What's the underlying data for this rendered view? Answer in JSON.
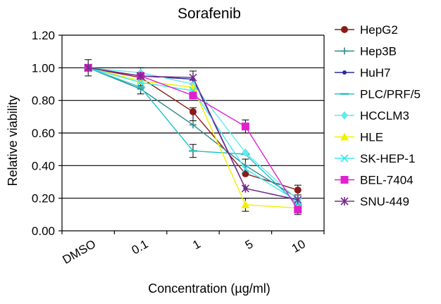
{
  "chart_data": {
    "type": "line",
    "title": "Sorafenib",
    "xlabel": "Concentration (µg/ml)",
    "ylabel": "Relative viability",
    "categories": [
      "DMSO",
      "0.1",
      "1",
      "5",
      "10"
    ],
    "ylim": [
      0,
      1.2
    ],
    "yticks": [
      "0.00",
      "0.20",
      "0.40",
      "0.60",
      "0.80",
      "1.00",
      "1.20"
    ],
    "grid": true,
    "legend": "right",
    "series": [
      {
        "name": "HepG2",
        "color": "#8b1a1a",
        "marker": "circle",
        "values": [
          1.0,
          0.94,
          0.73,
          0.35,
          0.25
        ]
      },
      {
        "name": "Hep3B",
        "color": "#2e8b8b",
        "marker": "plus",
        "values": [
          1.0,
          0.87,
          0.65,
          0.4,
          0.2
        ]
      },
      {
        "name": "HuH7",
        "color": "#2a2aa0",
        "marker": "dot",
        "values": [
          1.0,
          0.95,
          0.93,
          0.26,
          0.19
        ]
      },
      {
        "name": "PLC/PRF/5",
        "color": "#20c0c8",
        "marker": "dash",
        "values": [
          1.0,
          0.88,
          0.49,
          0.47,
          0.16
        ]
      },
      {
        "name": "HCCLM3",
        "color": "#66e8f0",
        "marker": "diamond",
        "values": [
          1.0,
          0.97,
          0.9,
          0.48,
          0.19
        ]
      },
      {
        "name": "HLE",
        "color": "#f0f000",
        "marker": "triangle",
        "values": [
          1.0,
          0.92,
          0.88,
          0.16,
          0.14
        ]
      },
      {
        "name": "SK-HEP-1",
        "color": "#40e8f0",
        "marker": "x",
        "values": [
          1.0,
          0.91,
          0.86,
          0.38,
          0.18
        ]
      },
      {
        "name": "BEL-7404",
        "color": "#e020d0",
        "marker": "square",
        "values": [
          1.0,
          0.95,
          0.83,
          0.64,
          0.13
        ]
      },
      {
        "name": "SNU-449",
        "color": "#7a2a8a",
        "marker": "star",
        "values": [
          1.0,
          0.95,
          0.94,
          0.26,
          0.19
        ]
      }
    ],
    "error_bars": {
      "DMSO": 0.05,
      "0.1": 0.03,
      "1": 0.04,
      "5": 0.04,
      "10": 0.03
    }
  }
}
